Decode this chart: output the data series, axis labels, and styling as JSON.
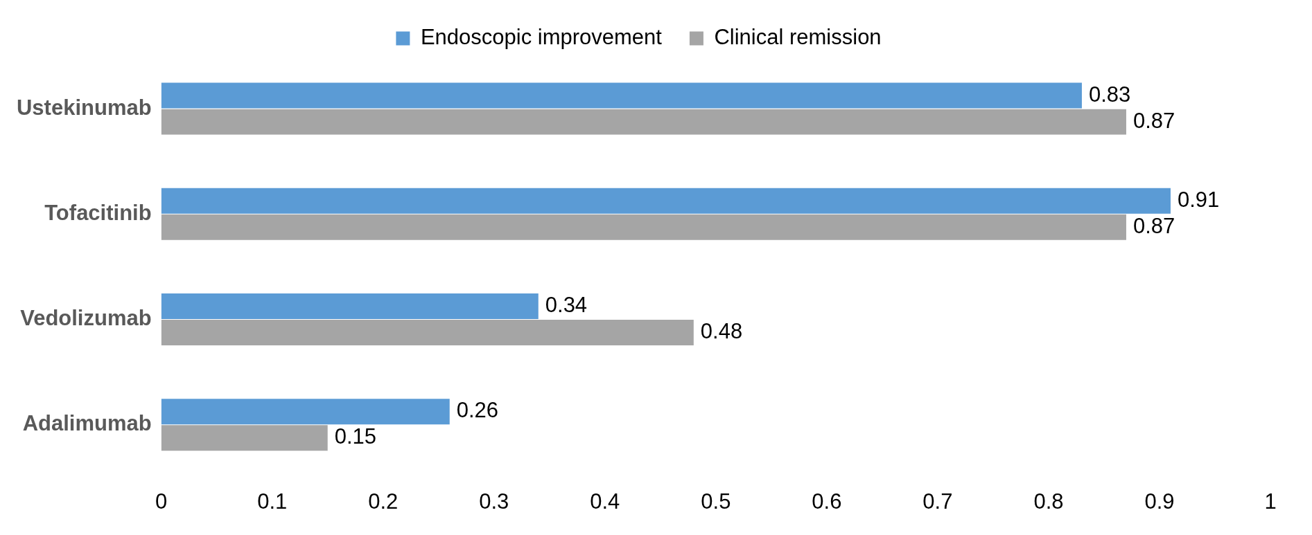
{
  "chart_data": {
    "type": "bar",
    "orientation": "horizontal",
    "categories": [
      "Ustekinumab",
      "Tofacitinib",
      "Vedolizumab",
      "Adalimumab"
    ],
    "series": [
      {
        "name": "Endoscopic improvement",
        "color": "#5b9bd5",
        "values": [
          0.83,
          0.91,
          0.34,
          0.26
        ]
      },
      {
        "name": "Clinical remission",
        "color": "#a5a5a5",
        "values": [
          0.87,
          0.87,
          0.48,
          0.15
        ]
      }
    ],
    "xlim": [
      0,
      1
    ],
    "xticks": [
      0,
      0.1,
      0.2,
      0.3,
      0.4,
      0.5,
      0.6,
      0.7,
      0.8,
      0.9,
      1
    ],
    "grid": false,
    "legend": "top",
    "data_labels": true
  }
}
